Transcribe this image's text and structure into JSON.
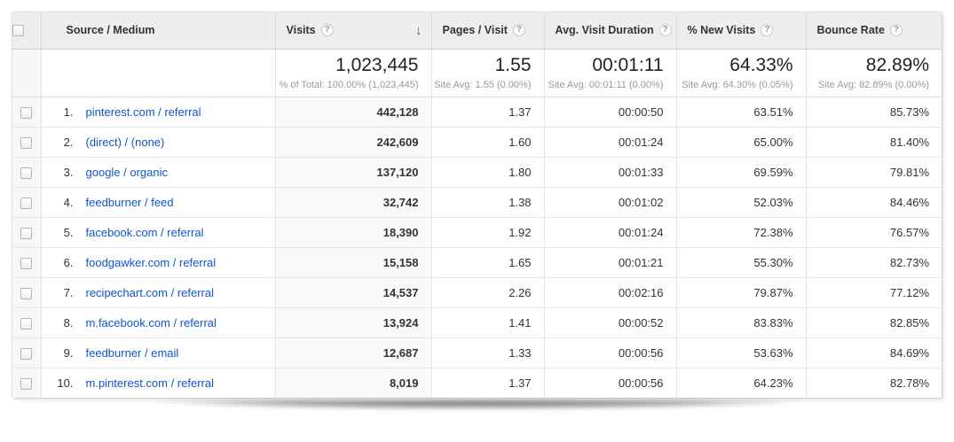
{
  "table": {
    "sort": {
      "column": "Visits",
      "direction": "descending"
    },
    "columns": {
      "source": {
        "label": "Source / Medium"
      },
      "visits": {
        "label": "Visits"
      },
      "pages": {
        "label": "Pages / Visit"
      },
      "duration": {
        "label": "Avg. Visit Duration"
      },
      "new_visits": {
        "label": "% New Visits"
      },
      "bounce": {
        "label": "Bounce Rate"
      }
    },
    "summary": {
      "visits": {
        "value": "1,023,445",
        "subtext": "% of Total: 100.00% (1,023,445)"
      },
      "pages": {
        "value": "1.55",
        "subtext": "Site Avg: 1.55 (0.00%)"
      },
      "duration": {
        "value": "00:01:11",
        "subtext": "Site Avg: 00:01:11 (0.00%)"
      },
      "new_visits": {
        "value": "64.33%",
        "subtext": "Site Avg: 64.30% (0.05%)"
      },
      "bounce": {
        "value": "82.89%",
        "subtext": "Site Avg: 82.89% (0.00%)"
      }
    },
    "rows": [
      {
        "rank": "1.",
        "source": "pinterest.com / referral",
        "visits": "442,128",
        "pages": "1.37",
        "duration": "00:00:50",
        "new_visits": "63.51%",
        "bounce": "85.73%"
      },
      {
        "rank": "2.",
        "source": "(direct) / (none)",
        "visits": "242,609",
        "pages": "1.60",
        "duration": "00:01:24",
        "new_visits": "65.00%",
        "bounce": "81.40%"
      },
      {
        "rank": "3.",
        "source": "google / organic",
        "visits": "137,120",
        "pages": "1.80",
        "duration": "00:01:33",
        "new_visits": "69.59%",
        "bounce": "79.81%"
      },
      {
        "rank": "4.",
        "source": "feedburner / feed",
        "visits": "32,742",
        "pages": "1.38",
        "duration": "00:01:02",
        "new_visits": "52.03%",
        "bounce": "84.46%"
      },
      {
        "rank": "5.",
        "source": "facebook.com / referral",
        "visits": "18,390",
        "pages": "1.92",
        "duration": "00:01:24",
        "new_visits": "72.38%",
        "bounce": "76.57%"
      },
      {
        "rank": "6.",
        "source": "foodgawker.com / referral",
        "visits": "15,158",
        "pages": "1.65",
        "duration": "00:01:21",
        "new_visits": "55.30%",
        "bounce": "82.73%"
      },
      {
        "rank": "7.",
        "source": "recipechart.com / referral",
        "visits": "14,537",
        "pages": "2.26",
        "duration": "00:02:16",
        "new_visits": "79.87%",
        "bounce": "77.12%"
      },
      {
        "rank": "8.",
        "source": "m.facebook.com / referral",
        "visits": "13,924",
        "pages": "1.41",
        "duration": "00:00:52",
        "new_visits": "83.83%",
        "bounce": "82.85%"
      },
      {
        "rank": "9.",
        "source": "feedburner / email",
        "visits": "12,687",
        "pages": "1.33",
        "duration": "00:00:56",
        "new_visits": "53.63%",
        "bounce": "84.69%"
      },
      {
        "rank": "10.",
        "source": "m.pinterest.com / referral",
        "visits": "8,019",
        "pages": "1.37",
        "duration": "00:00:56",
        "new_visits": "64.23%",
        "bounce": "82.78%"
      }
    ]
  },
  "icons": {
    "help_glyph": "?",
    "sort_desc_glyph": "↓"
  },
  "colors": {
    "link_blue": "#1155cc",
    "header_background": "#eeeeee",
    "sorted_column_background": "#fafafa",
    "value_text": "#333333",
    "subtext_gray": "#999999"
  }
}
